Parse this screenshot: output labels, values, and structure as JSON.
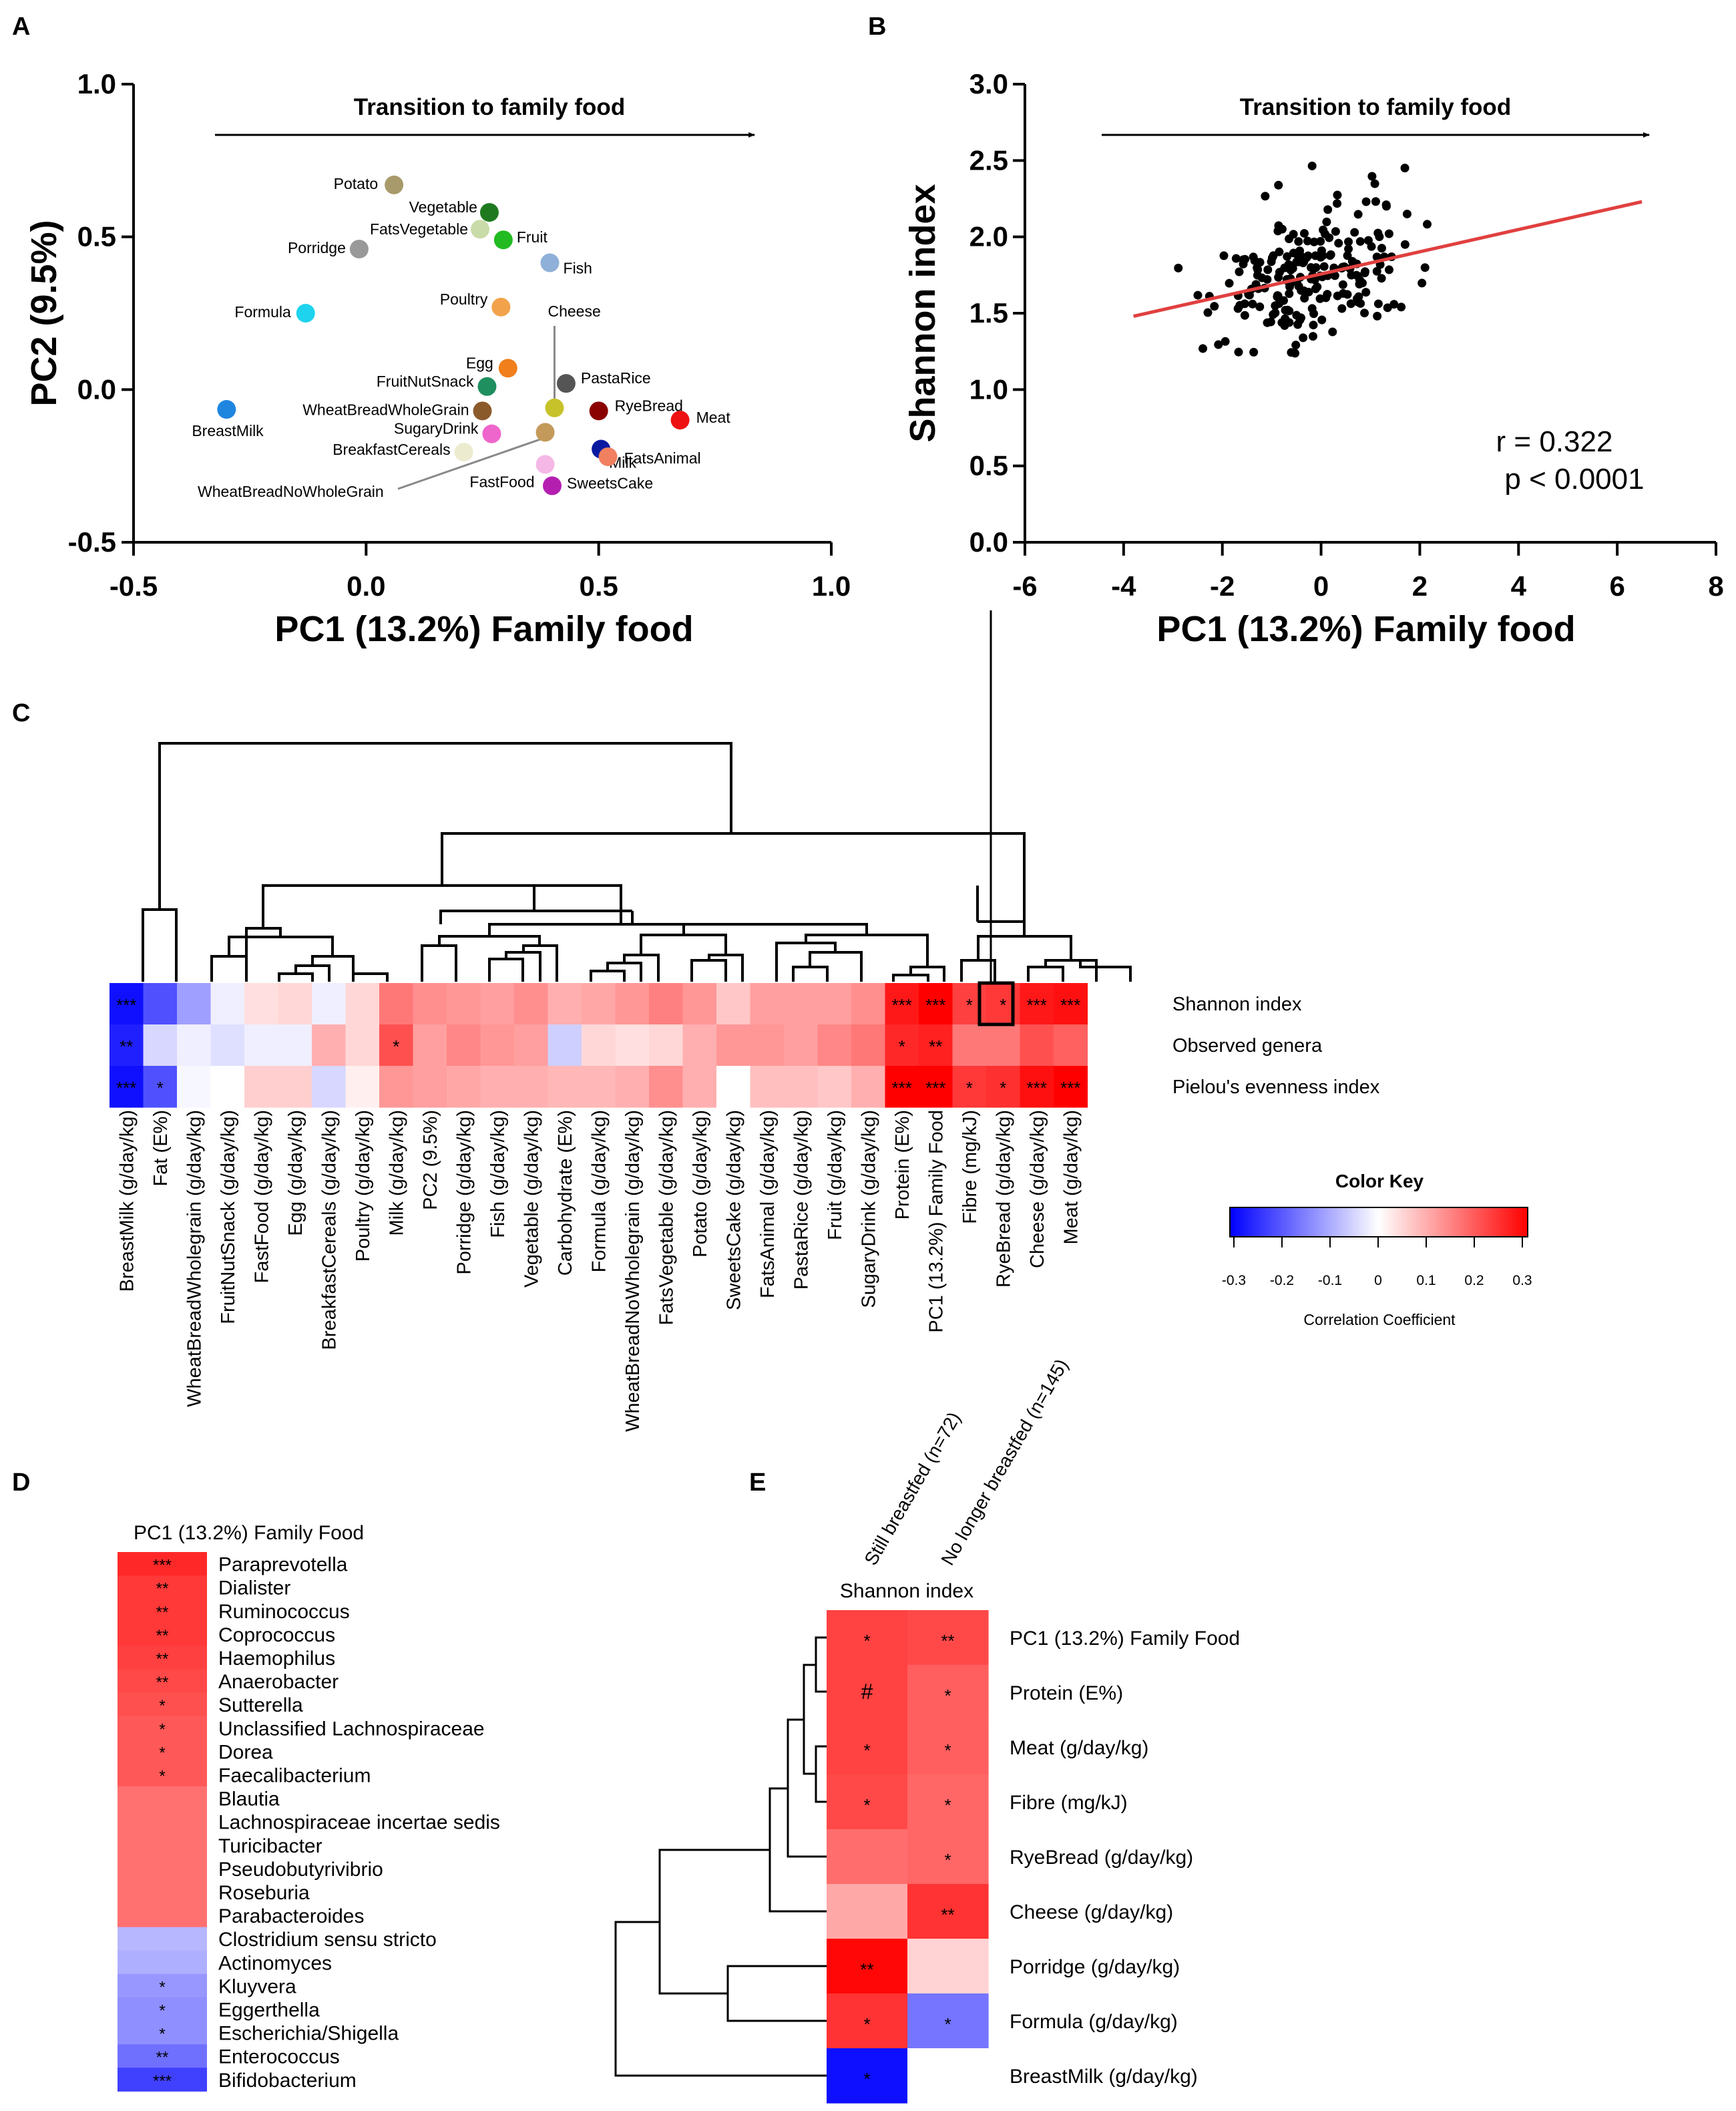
{
  "panel_labels": {
    "a": "A",
    "b": "B",
    "c": "C",
    "d": "D",
    "e": "E"
  },
  "chart_data": [
    {
      "id": "A",
      "type": "scatter",
      "title": "",
      "annotation": "Transition to family food",
      "xlabel": "PC1 (13.2%) Family food",
      "ylabel": "PC2 (9.5%)",
      "xlim": [
        -0.5,
        1.0
      ],
      "ylim": [
        -0.5,
        1.0
      ],
      "xticks": [
        "-0.5",
        "0.0",
        "0.5",
        "1.0"
      ],
      "yticks": [
        "-0.5",
        "0.0",
        "0.5",
        "1.0"
      ],
      "points": [
        {
          "label": "Potato",
          "x": 0.06,
          "y": 0.67,
          "color": "#a89a6a"
        },
        {
          "label": "Vegetable",
          "x": 0.265,
          "y": 0.58,
          "color": "#1f7a1f"
        },
        {
          "label": "FatsVegetable",
          "x": 0.245,
          "y": 0.525,
          "color": "#c9dba8"
        },
        {
          "label": "Fruit",
          "x": 0.295,
          "y": 0.49,
          "color": "#22bb22"
        },
        {
          "label": "Porridge",
          "x": -0.015,
          "y": 0.46,
          "color": "#999999"
        },
        {
          "label": "Fish",
          "x": 0.395,
          "y": 0.415,
          "color": "#8fb0d8"
        },
        {
          "label": "Formula",
          "x": -0.13,
          "y": 0.25,
          "color": "#1ed3ee"
        },
        {
          "label": "Poultry",
          "x": 0.29,
          "y": 0.27,
          "color": "#f2a24a"
        },
        {
          "label": "Egg",
          "x": 0.305,
          "y": 0.07,
          "color": "#f07f1c"
        },
        {
          "label": "FruitNutSnack",
          "x": 0.26,
          "y": 0.01,
          "color": "#1f8f5f"
        },
        {
          "label": "PastaRice",
          "x": 0.43,
          "y": 0.02,
          "color": "#555555"
        },
        {
          "label": "WheatBreadWholeGrain",
          "x": 0.25,
          "y": -0.07,
          "color": "#8b5a2b"
        },
        {
          "label": "Cheese",
          "x": 0.405,
          "y": -0.06,
          "color": "#c7c22a"
        },
        {
          "label": "RyeBread",
          "x": 0.5,
          "y": -0.07,
          "color": "#8b0000"
        },
        {
          "label": "BreastMilk",
          "x": -0.3,
          "y": -0.065,
          "color": "#1f86e0"
        },
        {
          "label": "Meat",
          "x": 0.675,
          "y": -0.1,
          "color": "#ee1111"
        },
        {
          "label": "SugaryDrink",
          "x": 0.27,
          "y": -0.145,
          "color": "#ee66cc"
        },
        {
          "label": "WheatBreadNoWholeGrain",
          "x": 0.385,
          "y": -0.14,
          "color": "#c49a5a"
        },
        {
          "label": "Milk",
          "x": 0.505,
          "y": -0.195,
          "color": "#0a1aa0"
        },
        {
          "label": "FatsAnimal",
          "x": 0.52,
          "y": -0.22,
          "color": "#f08060"
        },
        {
          "label": "BreakfastCereals",
          "x": 0.21,
          "y": -0.205,
          "color": "#ecebd0"
        },
        {
          "label": "FastFood",
          "x": 0.385,
          "y": -0.245,
          "color": "#f5b8e6"
        },
        {
          "label": "SweetsCake",
          "x": 0.4,
          "y": -0.315,
          "color": "#b51fb0"
        }
      ]
    },
    {
      "id": "B",
      "type": "scatter",
      "title": "",
      "annotation": "Transition to family food",
      "xlabel": "PC1 (13.2%) Family food",
      "ylabel": "Shannon index",
      "xlim": [
        -6,
        8
      ],
      "ylim": [
        0.0,
        3.0
      ],
      "xticks": [
        "-6",
        "-4",
        "-2",
        "0",
        "2",
        "4",
        "6",
        "8"
      ],
      "yticks": [
        "0.0",
        "0.5",
        "1.0",
        "1.5",
        "2.0",
        "2.5",
        "3.0"
      ],
      "stats": [
        "r = 0.322",
        "p < 0.0001"
      ],
      "regression": {
        "x1": -3.8,
        "y1": 1.48,
        "x2": 6.5,
        "y2": 2.23,
        "color": "#e04040"
      },
      "n_points": 217
    },
    {
      "id": "C",
      "type": "heatmap",
      "title": "",
      "columns": [
        "BreastMilk (g/day/kg)",
        "Fat (E%)",
        "WheatBreadWholegrain (g/day/kg)",
        "FruitNutSnack (g/day/kg)",
        "FastFood (g/day/kg)",
        "Egg (g/day/kg)",
        "BreakfastCereals (g/day/kg)",
        "Poultry (g/day/kg)",
        "Milk (g/day/kg)",
        "PC2 (9.5%)",
        "Porridge (g/day/kg)",
        "Fish (g/day/kg)",
        "Vegetable (g/day/kg)",
        "Carbohydrate (E%)",
        "Formula (g/day/kg)",
        "WheatBreadNoWholegrain (g/day/kg)",
        "FatsVegetable (g/day/kg)",
        "Potato (g/day/kg)",
        "SweetsCake (g/day/kg)",
        "FatsAnimal (g/day/kg)",
        "PastaRice (g/day/kg)",
        "Fruit (g/day/kg)",
        "SugaryDrink (g/day/kg)",
        "Protein (E%)",
        "PC1 (13.2%) Family Food",
        "Fibre (mg/kJ)",
        "RyeBread (g/day/kg)",
        "Cheese (g/day/kg)",
        "Meat (g/day/kg)"
      ],
      "rows": [
        "Shannon index",
        "Observed genera",
        "Pielou's evenness index"
      ],
      "values": [
        [
          -0.3,
          -0.22,
          -0.12,
          -0.02,
          0.04,
          0.05,
          -0.02,
          0.05,
          0.17,
          0.14,
          0.13,
          0.12,
          0.14,
          0.1,
          0.11,
          0.13,
          0.16,
          0.13,
          0.07,
          0.12,
          0.12,
          0.12,
          0.14,
          0.29,
          0.32,
          0.24,
          0.25,
          0.29,
          0.3
        ],
        [
          -0.28,
          -0.05,
          -0.02,
          -0.04,
          -0.02,
          -0.02,
          0.1,
          0.05,
          0.22,
          0.12,
          0.15,
          0.13,
          0.12,
          -0.06,
          0.05,
          0.04,
          0.05,
          0.1,
          0.13,
          0.13,
          0.12,
          0.15,
          0.17,
          0.27,
          0.28,
          0.17,
          0.17,
          0.22,
          0.2
        ],
        [
          -0.3,
          -0.22,
          -0.01,
          0.0,
          0.06,
          0.06,
          -0.05,
          0.02,
          0.13,
          0.12,
          0.11,
          0.1,
          0.1,
          0.09,
          0.09,
          0.1,
          0.14,
          0.1,
          0.0,
          0.08,
          0.08,
          0.07,
          0.1,
          0.32,
          0.33,
          0.25,
          0.26,
          0.3,
          0.32
        ]
      ],
      "stars": [
        [
          "***",
          "",
          "",
          "",
          "",
          "",
          "",
          "",
          "",
          "",
          "",
          "",
          "",
          "",
          "",
          "",
          "",
          "",
          "",
          "",
          "",
          "",
          "",
          "***",
          "***",
          "*",
          "*",
          "***",
          "***"
        ],
        [
          "**",
          "",
          "",
          "",
          "",
          "",
          "",
          "",
          "*",
          "",
          "",
          "",
          "",
          "",
          "",
          "",
          "",
          "",
          "",
          "",
          "",
          "",
          "",
          "*",
          "**",
          "",
          "",
          "",
          ""
        ],
        [
          "***",
          "*",
          "",
          "",
          "",
          "",
          "",
          "",
          "",
          "",
          "",
          "",
          "",
          "",
          "",
          "",
          "",
          "",
          "",
          "",
          "",
          "",
          "",
          "***",
          "***",
          "*",
          "*",
          "***",
          "***"
        ]
      ],
      "color_key": {
        "title": "Color Key",
        "label": "Correlation Coefficient",
        "ticks": [
          "-0.3",
          "-0.2",
          "-0.1",
          "0",
          "0.1",
          "0.2",
          "0.3"
        ],
        "low": "#0000ff",
        "mid": "#ffffff",
        "high": "#ff0000"
      }
    },
    {
      "id": "D",
      "type": "heatmap",
      "title": "PC1 (13.2%) Family Food",
      "rows": [
        "Paraprevotella",
        "Dialister",
        "Ruminococcus",
        "Coprococcus",
        "Haemophilus",
        "Anaerobacter",
        "Sutterella",
        "Unclassified Lachnospiraceae",
        "Dorea",
        "Faecalibacterium",
        "Blautia",
        "Lachnospiraceae incertae sedis",
        "Turicibacter",
        "Pseudobutyrivibrio",
        "Roseburia",
        "Parabacteroides",
        "Clostridium sensu stricto",
        "Actinomyces",
        "Kluyvera",
        "Eggerthella",
        "Escherichia/Shigella",
        "Enterococcus",
        "Bifidobacterium"
      ],
      "values": [
        0.27,
        0.25,
        0.25,
        0.25,
        0.24,
        0.23,
        0.22,
        0.21,
        0.21,
        0.21,
        0.18,
        0.18,
        0.18,
        0.18,
        0.18,
        0.18,
        -0.09,
        -0.1,
        -0.13,
        -0.14,
        -0.14,
        -0.18,
        -0.24
      ],
      "stars": [
        "***",
        "**",
        "**",
        "**",
        "**",
        "**",
        "*",
        "*",
        "*",
        "*",
        "",
        "",
        "",
        "",
        "",
        "",
        "",
        "",
        "*",
        "*",
        "*",
        "**",
        "***"
      ]
    },
    {
      "id": "E",
      "type": "heatmap",
      "title": "Shannon index",
      "columns": [
        "Still breastfed (n=72)",
        "No longer breastfed (n=145)"
      ],
      "rows": [
        "PC1 (13.2%) Family Food",
        "Protein (E%)",
        "Meat (g/day/kg)",
        "Fibre (mg/kJ)",
        "RyeBread (g/day/kg)",
        "Cheese (g/day/kg)",
        "Porridge (g/day/kg)",
        "Formula (g/day/kg)",
        "BreastMilk (g/day/kg)"
      ],
      "values": [
        [
          0.26,
          0.25
        ],
        [
          0.26,
          0.22
        ],
        [
          0.26,
          0.22
        ],
        [
          0.25,
          0.21
        ],
        [
          0.2,
          0.21
        ],
        [
          0.12,
          0.28
        ],
        [
          0.34,
          0.06
        ],
        [
          0.28,
          -0.19
        ],
        [
          -0.33,
          0.0
        ]
      ],
      "stars": [
        [
          "*",
          "**"
        ],
        [
          "#",
          "*"
        ],
        [
          "*",
          "*"
        ],
        [
          "*",
          "*"
        ],
        [
          "",
          "*"
        ],
        [
          "",
          "**"
        ],
        [
          "**",
          ""
        ],
        [
          "*",
          "*"
        ],
        [
          "*",
          ""
        ]
      ]
    }
  ]
}
